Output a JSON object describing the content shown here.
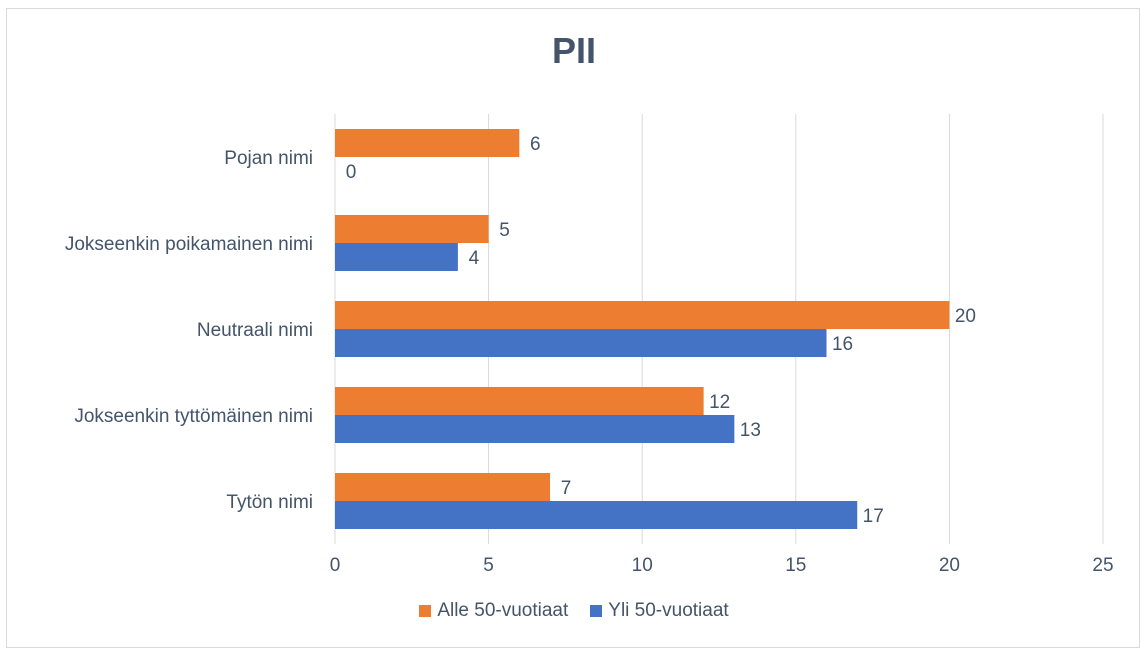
{
  "chart_data": {
    "type": "bar",
    "orientation": "horizontal",
    "title": "PII",
    "categories": [
      "Pojan nimi",
      "Jokseenkin poikamainen nimi",
      "Neutraali nimi",
      "Jokseenkin tyttömäinen nimi",
      "Tytön nimi"
    ],
    "series": [
      {
        "name": "Alle 50-vuotiaat",
        "values": [
          6,
          5,
          20,
          12,
          7
        ],
        "color": "#ed7d31"
      },
      {
        "name": "Yli 50-vuotiaat",
        "values": [
          0,
          4,
          16,
          13,
          17
        ],
        "color": "#4472c4"
      }
    ],
    "xlim": [
      0,
      25
    ],
    "xticks": [
      0,
      5,
      10,
      15,
      20,
      25
    ],
    "grid": true,
    "legend_position": "bottom"
  }
}
